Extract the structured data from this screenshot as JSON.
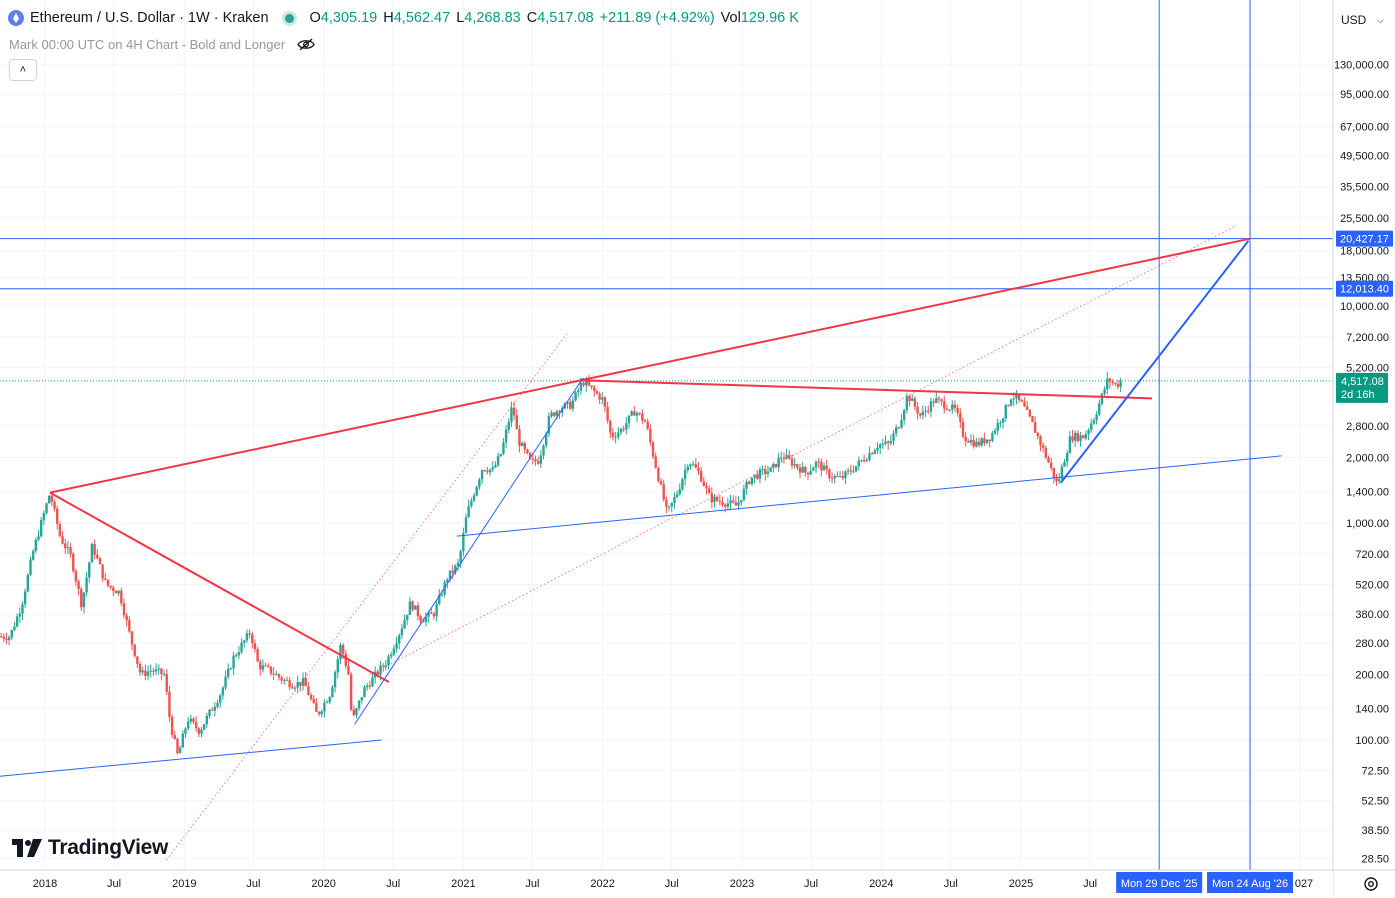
{
  "header": {
    "symbol": "Ethereum / U.S. Dollar · 1W · Kraken",
    "open_label": "O",
    "open": "4,305.19",
    "high_label": "H",
    "high": "4,562.47",
    "low_label": "L",
    "low": "4,268.83",
    "close_label": "C",
    "close": "4,517.08",
    "change": "+211.89 (+4.92%)",
    "vol_label": "Vol",
    "vol": "129.96 K",
    "indicator": "Mark 00:00 UTC on 4H Chart - Bold and Longer",
    "currency": "USD"
  },
  "branding": {
    "logo_text": "TradingView",
    "logo_icon": "tradingview-logo-icon"
  },
  "colors": {
    "up": "#26a69a",
    "down": "#ef5350",
    "red_line": "#f23645",
    "blue_line": "#2962ff",
    "marker_blue": "#2962ff",
    "price_green": "#089981"
  },
  "chart_data": {
    "type": "candlestick",
    "y_scale": "log",
    "x_tick_labels": [
      "2018",
      "Jul",
      "2019",
      "Jul",
      "2020",
      "Jul",
      "2021",
      "Jul",
      "2022",
      "Jul",
      "2023",
      "Jul",
      "2024",
      "Jul",
      "2025",
      "Jul",
      "027"
    ],
    "x_tick_dates": [
      "2018-01-01",
      "2018-07-01",
      "2019-01-01",
      "2019-07-01",
      "2020-01-01",
      "2020-07-01",
      "2021-01-01",
      "2021-07-01",
      "2022-01-01",
      "2022-07-01",
      "2023-01-01",
      "2023-07-01",
      "2024-01-01",
      "2024-07-01",
      "2025-01-01",
      "2025-07-01",
      "2027-01-01"
    ],
    "y_tick_labels": [
      "130,000.00",
      "95,000.00",
      "67,000.00",
      "49,500.00",
      "35,500.00",
      "25,500.00",
      "18,000.00",
      "13,500.00",
      "10,000.00",
      "7,200.00",
      "5,200.00",
      "2,800.00",
      "2,000.00",
      "1,400.00",
      "1,000.00",
      "720.00",
      "520.00",
      "380.00",
      "280.00",
      "200.00",
      "140.00",
      "100.00",
      "72.50",
      "52.50",
      "38.50",
      "28.50"
    ],
    "y_tick_values": [
      130000,
      95000,
      67000,
      49500,
      35500,
      25500,
      18000,
      13500,
      10000,
      7200,
      5200,
      2800,
      2000,
      1400,
      1000,
      720,
      520,
      380,
      280,
      200,
      140,
      100,
      72.5,
      52.5,
      38.5,
      28.5
    ],
    "price_path": [
      [
        "2017-09-01",
        300
      ],
      [
        "2017-10-01",
        300
      ],
      [
        "2017-11-01",
        420
      ],
      [
        "2017-12-01",
        740
      ],
      [
        "2018-01-14",
        1380
      ],
      [
        "2018-02-10",
        860
      ],
      [
        "2018-03-10",
        700
      ],
      [
        "2018-04-07",
        420
      ],
      [
        "2018-05-05",
        790
      ],
      [
        "2018-06-10",
        520
      ],
      [
        "2018-07-15",
        480
      ],
      [
        "2018-08-12",
        300
      ],
      [
        "2018-09-09",
        200
      ],
      [
        "2018-10-07",
        210
      ],
      [
        "2018-11-10",
        200
      ],
      [
        "2018-11-25",
        120
      ],
      [
        "2018-12-15",
        84
      ],
      [
        "2019-01-10",
        125
      ],
      [
        "2019-02-10",
        110
      ],
      [
        "2019-03-10",
        135
      ],
      [
        "2019-04-07",
        165
      ],
      [
        "2019-05-10",
        240
      ],
      [
        "2019-06-23",
        315
      ],
      [
        "2019-07-14",
        220
      ],
      [
        "2019-08-11",
        210
      ],
      [
        "2019-09-15",
        190
      ],
      [
        "2019-10-13",
        180
      ],
      [
        "2019-11-10",
        185
      ],
      [
        "2019-12-15",
        130
      ],
      [
        "2020-01-19",
        165
      ],
      [
        "2020-02-15",
        275
      ],
      [
        "2020-03-08",
        195
      ],
      [
        "2020-03-15",
        120
      ],
      [
        "2020-04-15",
        170
      ],
      [
        "2020-05-17",
        200
      ],
      [
        "2020-06-14",
        230
      ],
      [
        "2020-07-20",
        320
      ],
      [
        "2020-08-16",
        430
      ],
      [
        "2020-09-13",
        360
      ],
      [
        "2020-10-15",
        380
      ],
      [
        "2020-11-20",
        560
      ],
      [
        "2020-12-20",
        650
      ],
      [
        "2021-01-10",
        1100
      ],
      [
        "2021-02-20",
        1800
      ],
      [
        "2021-03-20",
        1750
      ],
      [
        "2021-04-10",
        2100
      ],
      [
        "2021-05-10",
        3500
      ],
      [
        "2021-05-25",
        2400
      ],
      [
        "2021-06-27",
        1900
      ],
      [
        "2021-07-18",
        1950
      ],
      [
        "2021-08-15",
        3100
      ],
      [
        "2021-09-12",
        3400
      ],
      [
        "2021-10-10",
        3500
      ],
      [
        "2021-11-10",
        4500
      ],
      [
        "2021-12-05",
        4100
      ],
      [
        "2022-01-02",
        3700
      ],
      [
        "2022-01-23",
        2500
      ],
      [
        "2022-02-20",
        2700
      ],
      [
        "2022-03-27",
        3300
      ],
      [
        "2022-04-24",
        2900
      ],
      [
        "2022-05-15",
        2000
      ],
      [
        "2022-06-19",
        1100
      ],
      [
        "2022-07-17",
        1400
      ],
      [
        "2022-08-14",
        1950
      ],
      [
        "2022-09-11",
        1700
      ],
      [
        "2022-10-09",
        1300
      ],
      [
        "2022-11-13",
        1250
      ],
      [
        "2022-12-18",
        1200
      ],
      [
        "2023-01-22",
        1600
      ],
      [
        "2023-02-19",
        1700
      ],
      [
        "2023-03-19",
        1750
      ],
      [
        "2023-04-16",
        2050
      ],
      [
        "2023-05-21",
        1850
      ],
      [
        "2023-06-18",
        1700
      ],
      [
        "2023-07-16",
        1900
      ],
      [
        "2023-08-20",
        1650
      ],
      [
        "2023-09-17",
        1600
      ],
      [
        "2023-10-22",
        1800
      ],
      [
        "2023-11-19",
        2000
      ],
      [
        "2023-12-24",
        2300
      ],
      [
        "2024-01-21",
        2300
      ],
      [
        "2024-02-18",
        2900
      ],
      [
        "2024-03-10",
        3900
      ],
      [
        "2024-04-14",
        3100
      ],
      [
        "2024-05-19",
        3700
      ],
      [
        "2024-06-16",
        3500
      ],
      [
        "2024-07-14",
        3300
      ],
      [
        "2024-08-04",
        2500
      ],
      [
        "2024-09-08",
        2300
      ],
      [
        "2024-10-13",
        2500
      ],
      [
        "2024-11-17",
        3200
      ],
      [
        "2024-12-08",
        3900
      ],
      [
        "2025-01-05",
        3500
      ],
      [
        "2025-02-02",
        2800
      ],
      [
        "2025-03-09",
        2000
      ],
      [
        "2025-04-06",
        1500
      ],
      [
        "2025-05-11",
        2500
      ],
      [
        "2025-06-15",
        2500
      ],
      [
        "2025-07-13",
        3100
      ],
      [
        "2025-08-17",
        4600
      ],
      [
        "2025-09-07",
        4300
      ],
      [
        "2025-09-21",
        4517
      ]
    ],
    "horizontal_levels": [
      {
        "price": 20427.17,
        "label": "20,427.17"
      },
      {
        "price": 12013.4,
        "label": "12,013.40"
      }
    ],
    "last_price": {
      "price": 4517.08,
      "label": "4,517.08",
      "countdown": "2d 16h"
    },
    "vertical_markers": [
      {
        "date": "2025-12-29",
        "label": "Mon 29 Dec '25"
      },
      {
        "date": "2026-08-24",
        "label": "Mon 24 Aug '26"
      }
    ],
    "trendlines": [
      {
        "color": "red",
        "points": [
          [
            "2018-01-14",
            1380
          ],
          [
            "2026-08-24",
            20427
          ]
        ]
      },
      {
        "color": "red",
        "points": [
          [
            "2018-01-14",
            1380
          ],
          [
            "2020-06-20",
            185
          ]
        ]
      },
      {
        "color": "red",
        "points": [
          [
            "2021-11-01",
            4550
          ],
          [
            "2025-12-10",
            3750
          ]
        ]
      },
      {
        "color": "blue",
        "points": [
          [
            "2020-03-22",
            118
          ],
          [
            "2021-11-10",
            4650
          ]
        ]
      },
      {
        "color": "blue",
        "points": [
          [
            "2025-04-15",
            1530
          ],
          [
            "2026-08-20",
            20000
          ]
        ]
      },
      {
        "color": "blue",
        "points": [
          [
            "2017-09-01",
            68
          ],
          [
            "2020-06-01",
            100
          ]
        ]
      },
      {
        "color": "blue",
        "points": [
          [
            "2020-12-15",
            870
          ],
          [
            "2026-11-15",
            2040
          ]
        ]
      }
    ]
  }
}
